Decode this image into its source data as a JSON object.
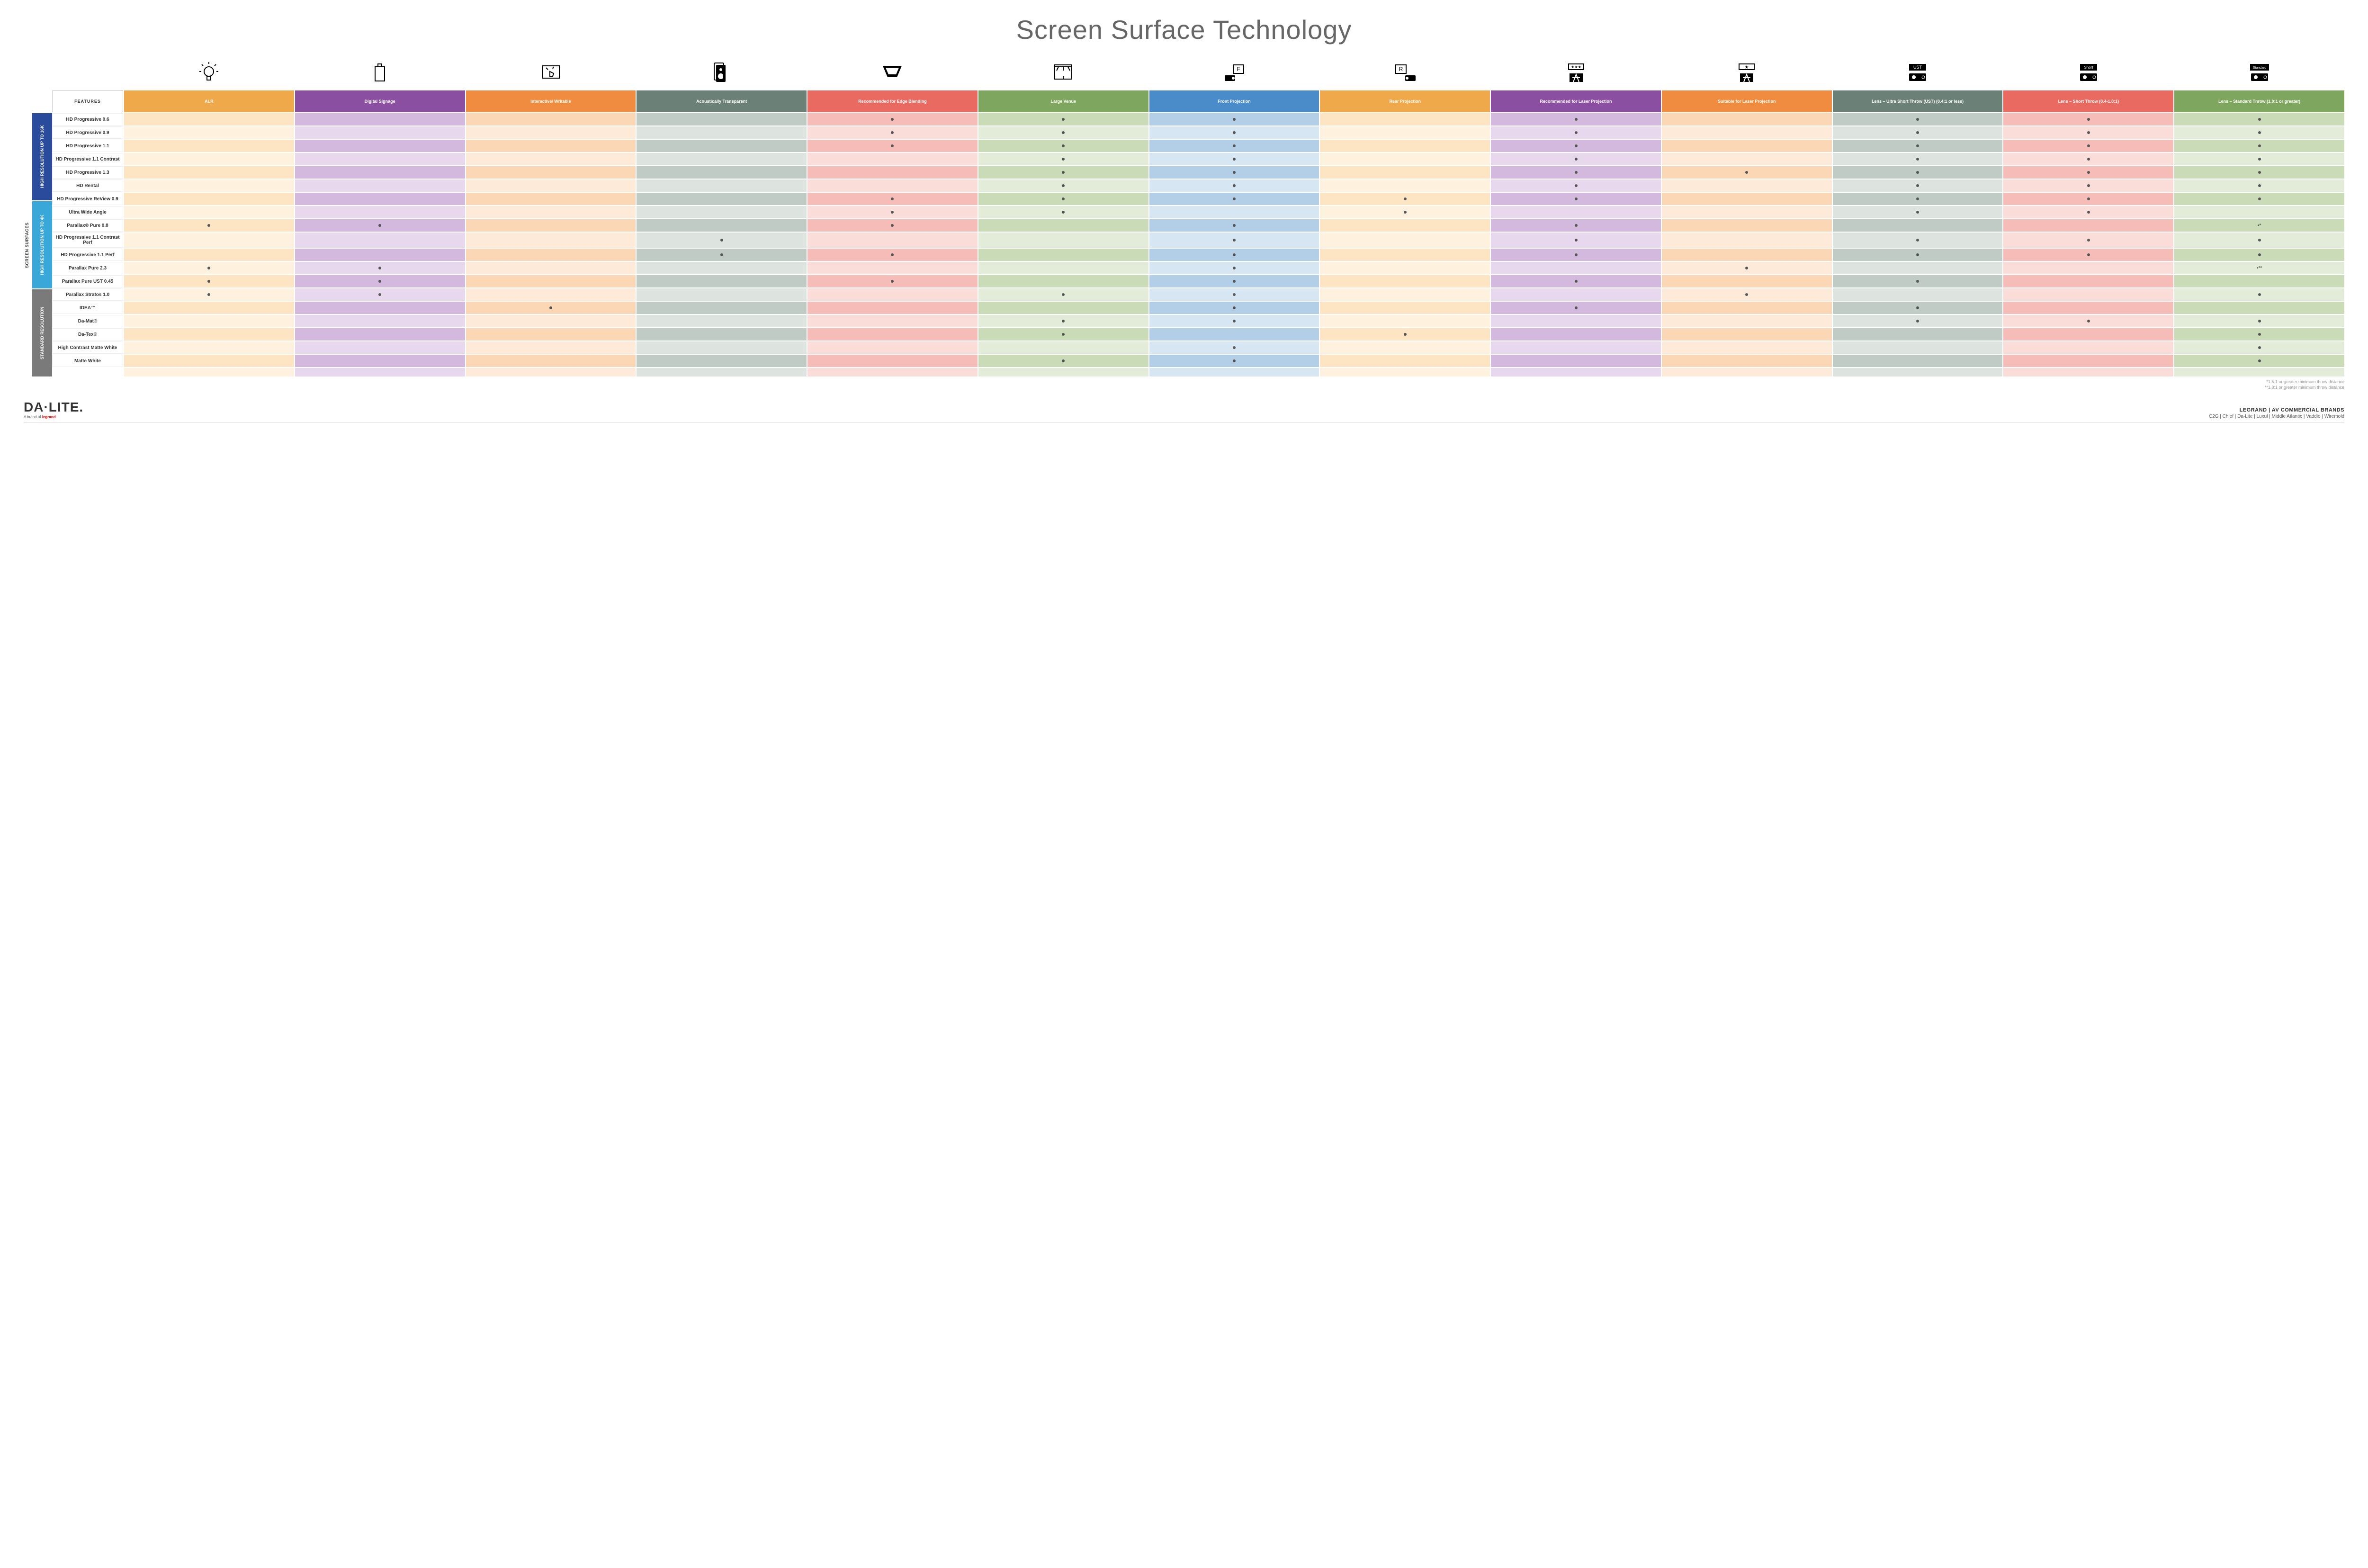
{
  "title": "Screen Surface Technology",
  "columns": [
    {
      "key": "alr",
      "label": "ALR",
      "color": "#f0a94a",
      "light": "#fde4c2",
      "lighter": "#fef1de"
    },
    {
      "key": "ds",
      "label": "Digital Signage",
      "color": "#8a4fa0",
      "light": "#d3b9de",
      "lighter": "#e7d8ed"
    },
    {
      "key": "iw",
      "label": "Interactive/ Writable",
      "color": "#f08c3f",
      "light": "#fbd7b6",
      "lighter": "#fdead8"
    },
    {
      "key": "at",
      "label": "Acoustically Transparent",
      "color": "#6b8076",
      "light": "#c1cbc5",
      "lighter": "#dde3df"
    },
    {
      "key": "eb",
      "label": "Recommended for Edge Blending",
      "color": "#e96a61",
      "light": "#f6bcb7",
      "lighter": "#fadcd9"
    },
    {
      "key": "lv",
      "label": "Large Venue",
      "color": "#7fa65e",
      "light": "#cadbb8",
      "lighter": "#e2ecd8"
    },
    {
      "key": "fp",
      "label": "Front Projection",
      "color": "#4a8bc9",
      "light": "#b3cfe8",
      "lighter": "#d7e6f3"
    },
    {
      "key": "rp",
      "label": "Rear Projection",
      "color": "#f0a94a",
      "light": "#fde4c2",
      "lighter": "#fef1de"
    },
    {
      "key": "rl",
      "label": "Recommended for Laser Projection",
      "color": "#8a4fa0",
      "light": "#d3b9de",
      "lighter": "#e7d8ed"
    },
    {
      "key": "sl",
      "label": "Suitable for Laser Projection",
      "color": "#f08c3f",
      "light": "#fbd7b6",
      "lighter": "#fdead8"
    },
    {
      "key": "ust",
      "label": "Lens – Ultra Short Throw (UST) (0.4:1 or less)",
      "color": "#6b8076",
      "light": "#c1cbc5",
      "lighter": "#dde3df"
    },
    {
      "key": "st",
      "label": "Lens – Short Throw (0.4-1.0:1)",
      "color": "#e96a61",
      "light": "#f6bcb7",
      "lighter": "#fadcd9"
    },
    {
      "key": "std",
      "label": "Lens – Standard Throw (1.0:1 or greater)",
      "color": "#7fa65e",
      "light": "#cadbb8",
      "lighter": "#e2ecd8"
    }
  ],
  "icons": [
    "bulb",
    "signage",
    "touch",
    "speaker",
    "venue",
    "stage",
    "front-proj",
    "rear-proj",
    "laser-rec",
    "laser-suit",
    "ust",
    "short",
    "standard"
  ],
  "categories": [
    {
      "label": "HIGH RESOLUTION UP TO 16K",
      "bg": "#2a4b9b",
      "rows": [
        {
          "name": "HD Progressive 0.6",
          "dots": {
            "eb": "•",
            "lv": "•",
            "fp": "•",
            "rl": "•",
            "ust": "•",
            "st": "•",
            "std": "•"
          }
        },
        {
          "name": "HD Progressive 0.9",
          "dots": {
            "eb": "•",
            "lv": "•",
            "fp": "•",
            "rl": "•",
            "ust": "•",
            "st": "•",
            "std": "•"
          }
        },
        {
          "name": "HD Progressive 1.1",
          "dots": {
            "eb": "•",
            "lv": "•",
            "fp": "•",
            "rl": "•",
            "ust": "•",
            "st": "•",
            "std": "•"
          }
        },
        {
          "name": "HD Progressive 1.1 Contrast",
          "dots": {
            "lv": "•",
            "fp": "•",
            "rl": "•",
            "ust": "•",
            "st": "•",
            "std": "•"
          }
        },
        {
          "name": "HD Progressive 1.3",
          "dots": {
            "lv": "•",
            "fp": "•",
            "rl": "•",
            "sl": "•",
            "ust": "•",
            "st": "•",
            "std": "•"
          }
        },
        {
          "name": "HD Rental",
          "dots": {
            "lv": "•",
            "fp": "•",
            "rl": "•",
            "ust": "•",
            "st": "•",
            "std": "•"
          }
        },
        {
          "name": "HD Progressive ReView 0.9",
          "dots": {
            "eb": "•",
            "lv": "•",
            "fp": "•",
            "rp": "•",
            "rl": "•",
            "ust": "•",
            "st": "•",
            "std": "•"
          }
        },
        {
          "name": "Ultra Wide Angle",
          "dots": {
            "eb": "•",
            "lv": "•",
            "rp": "•",
            "ust": "•",
            "st": "•"
          }
        },
        {
          "name": "Parallax® Pure 0.8",
          "dots": {
            "alr": "•",
            "ds": "•",
            "eb": "•",
            "fp": "•",
            "rl": "•",
            "std": "•*"
          }
        }
      ]
    },
    {
      "label": "HIGH RESOLUTION UP TO 4K",
      "bg": "#3aa7d9",
      "rows": [
        {
          "name": "HD Progressive 1.1 Contrast Perf",
          "dots": {
            "at": "•",
            "fp": "•",
            "rl": "•",
            "ust": "•",
            "st": "•",
            "std": "•"
          }
        },
        {
          "name": "HD Progressive 1.1 Perf",
          "dots": {
            "at": "•",
            "eb": "•",
            "fp": "•",
            "rl": "•",
            "ust": "•",
            "st": "•",
            "std": "•"
          }
        },
        {
          "name": "Parallax Pure 2.3",
          "dots": {
            "alr": "•",
            "ds": "•",
            "fp": "•",
            "sl": "•",
            "std": "•**"
          }
        },
        {
          "name": "Parallax Pure UST 0.45",
          "dots": {
            "alr": "•",
            "ds": "•",
            "eb": "•",
            "fp": "•",
            "rl": "•",
            "ust": "•"
          }
        },
        {
          "name": "Parallax Stratos 1.0",
          "dots": {
            "alr": "•",
            "ds": "•",
            "lv": "•",
            "fp": "•",
            "sl": "•",
            "std": "•"
          }
        },
        {
          "name": "IDEA™",
          "dots": {
            "iw": "•",
            "fp": "•",
            "rl": "•",
            "ust": "•"
          }
        }
      ]
    },
    {
      "label": "STANDARD RESOLUTION",
      "bg": "#7a7a7a",
      "rows": [
        {
          "name": "Da-Mat®",
          "dots": {
            "lv": "•",
            "fp": "•",
            "ust": "•",
            "st": "•",
            "std": "•"
          }
        },
        {
          "name": "Da-Tex®",
          "dots": {
            "lv": "•",
            "rp": "•",
            "std": "•"
          }
        },
        {
          "name": "High Contrast Matte White",
          "dots": {
            "fp": "•",
            "std": "•"
          }
        },
        {
          "name": "Matte White",
          "dots": {
            "lv": "•",
            "fp": "•",
            "std": "•"
          }
        }
      ]
    }
  ],
  "side_label": "SCREEN SURFACES",
  "features_label": "FEATURES",
  "footnotes": [
    "*1.5:1 or greater minimum throw distance",
    "**1.8:1 or greater minimum throw distance"
  ],
  "footer": {
    "logo": "DA·LITE.",
    "logo_sub_prefix": "A brand of ",
    "logo_sub_brand": "legrand",
    "brands_title": "LEGRAND | AV COMMERCIAL BRANDS",
    "brands": "C2G  |  Chief  |  Da-Lite  |  Luxul  |  Middle Atlantic  |  Vaddio  |  Wiremold"
  }
}
